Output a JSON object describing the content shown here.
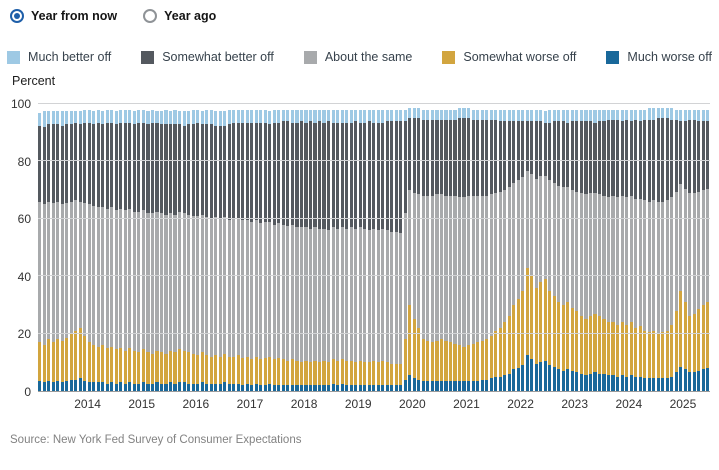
{
  "controls": {
    "radios": [
      {
        "label": "Year from now",
        "selected": true
      },
      {
        "label": "Year ago",
        "selected": false
      }
    ]
  },
  "legend": {
    "items": [
      {
        "label": "Much better off",
        "color": "#9ec9e4"
      },
      {
        "label": "Somewhat better off",
        "color": "#54595f"
      },
      {
        "label": "About the same",
        "color": "#a8aaac"
      },
      {
        "label": "Somewhat worse off",
        "color": "#d2a53f"
      },
      {
        "label": "Much worse off",
        "color": "#19689a"
      }
    ]
  },
  "source": {
    "text": "Source: New York Fed Survey of Consumer Expectations"
  },
  "chart_data": {
    "type": "bar",
    "subtype": "stacked-monthly",
    "title": "",
    "ylabel": "Percent",
    "ylim": [
      0,
      100
    ],
    "yticks": [
      0,
      20,
      40,
      60,
      80,
      100
    ],
    "grid": true,
    "legend_position": "top-center",
    "start_month": "2013-06",
    "end_month": "2025-10",
    "x_year_labels": [
      2014,
      2015,
      2016,
      2017,
      2018,
      2019,
      2020,
      2021,
      2022,
      2023,
      2024,
      2025
    ],
    "series": [
      {
        "name": "Much worse off",
        "color": "#19689a",
        "values": [
          3.5,
          3,
          3.5,
          3,
          3.5,
          3,
          3.5,
          4,
          4,
          4.5,
          3.5,
          3,
          3,
          3,
          3,
          2.5,
          3,
          2.5,
          3,
          2.5,
          3,
          2.5,
          2.5,
          3,
          2.5,
          2.5,
          3,
          2.5,
          2.5,
          3,
          2.5,
          3,
          3,
          2.5,
          2.5,
          2.5,
          3,
          2.5,
          2.5,
          2.5,
          2.5,
          3,
          2.5,
          2.5,
          2.5,
          2,
          2.5,
          2,
          2.5,
          2,
          2,
          2.5,
          2,
          2,
          2,
          2,
          2,
          2,
          2,
          2,
          2,
          2,
          2,
          2,
          2,
          2.5,
          2,
          2.5,
          2,
          2,
          2,
          2,
          2,
          2,
          2,
          2,
          2,
          2,
          2,
          2,
          2,
          4,
          5.5,
          4.5,
          4,
          3.5,
          3.5,
          3.5,
          3.5,
          3.5,
          3.5,
          3.5,
          3.5,
          3.5,
          3.5,
          3.5,
          3.5,
          3.5,
          4,
          4,
          4.5,
          5,
          5,
          5.5,
          6,
          7.5,
          8,
          9,
          12.5,
          11,
          9.5,
          10,
          10.5,
          9,
          8.5,
          7.5,
          7,
          7.5,
          7,
          6.5,
          6,
          5.5,
          6,
          6.5,
          6,
          6,
          5.5,
          5.5,
          5,
          5.5,
          5,
          5.5,
          5,
          5,
          4.5,
          4.5,
          4.5,
          4.5,
          4.5,
          4.5,
          5,
          6.5,
          8.5,
          7.5,
          6.5,
          6.5,
          7,
          7.5,
          8
        ]
      },
      {
        "name": "Somewhat worse off",
        "color": "#d2a53f",
        "values": [
          13.5,
          13,
          14.5,
          14,
          14.5,
          14.5,
          15,
          16,
          17,
          17.5,
          15.5,
          14,
          13,
          12.5,
          13,
          12.5,
          12.5,
          12,
          12,
          11.5,
          12,
          11.5,
          11,
          11.5,
          11,
          10.5,
          11,
          11,
          10.5,
          11,
          11,
          11.5,
          11,
          11,
          10.5,
          10,
          10.5,
          10,
          9.5,
          10,
          9.5,
          10,
          9.5,
          9.5,
          10,
          9.5,
          9.5,
          9,
          9.5,
          9,
          9.5,
          9.5,
          9,
          9.5,
          9,
          8.5,
          9,
          8.5,
          8,
          8.5,
          8,
          8.5,
          8,
          8.5,
          8,
          8.5,
          8.5,
          8.5,
          8.5,
          8.5,
          8,
          8.5,
          8,
          8,
          8.5,
          8,
          8.5,
          8,
          7.5,
          7.5,
          7.5,
          14,
          24.5,
          20.5,
          18,
          14.5,
          14,
          13.5,
          14,
          14.5,
          14,
          13.5,
          13,
          12.5,
          12,
          12.5,
          13,
          13.5,
          13.5,
          14,
          14.5,
          16,
          17,
          18.5,
          20,
          22.5,
          24,
          26,
          30.5,
          29,
          26.5,
          28,
          28.5,
          26,
          24.5,
          23.5,
          23,
          23.5,
          22,
          21.5,
          20,
          19.5,
          20,
          20.5,
          20,
          19,
          18.5,
          18.5,
          18,
          18.5,
          18,
          18.5,
          17,
          17.5,
          16.5,
          16,
          16.5,
          15.5,
          16,
          16.5,
          18,
          21.5,
          26.5,
          23.5,
          19.5,
          20.5,
          21.5,
          22.5,
          23
        ]
      },
      {
        "name": "About the same",
        "color": "#a8aaac",
        "values": [
          49,
          49,
          48,
          48.5,
          48,
          47.5,
          47,
          46,
          45.5,
          44,
          46.5,
          48,
          48.5,
          48.5,
          48,
          48.5,
          48.5,
          48.5,
          48.5,
          49,
          48.5,
          48.5,
          49,
          48.5,
          48.5,
          49,
          48.5,
          48.5,
          48.5,
          48,
          48,
          48,
          48,
          48,
          48,
          48.5,
          48,
          48,
          48,
          48,
          48,
          47.5,
          47.5,
          48,
          47.5,
          48,
          47.5,
          48,
          47.5,
          47.5,
          47.5,
          47,
          47,
          47,
          47,
          47,
          47,
          46.5,
          47,
          46.5,
          46.5,
          46.5,
          46.5,
          46,
          46,
          46,
          46,
          46,
          46,
          46.5,
          46.5,
          46.5,
          46.5,
          46,
          46,
          46,
          46,
          46,
          46,
          46,
          45.5,
          44,
          40,
          44,
          46.5,
          50,
          50.5,
          51,
          51,
          50.5,
          50.5,
          51,
          51.5,
          51.5,
          52,
          52,
          51.5,
          51,
          50.5,
          50,
          49.5,
          48,
          47.5,
          46,
          45,
          42.5,
          41.5,
          39.5,
          33.5,
          35.5,
          38,
          37,
          36,
          38.5,
          39.5,
          40.5,
          41,
          40,
          41,
          41.5,
          43,
          43.5,
          43,
          42,
          42.5,
          43,
          43.5,
          44,
          44.5,
          44,
          44.5,
          44,
          45,
          44.5,
          45.5,
          45.5,
          45.5,
          46,
          45.5,
          45.5,
          44.5,
          41.5,
          37,
          39.5,
          43,
          42,
          41,
          40,
          39.5
        ]
      },
      {
        "name": "Somewhat better off",
        "color": "#54595f",
        "values": [
          26.5,
          27,
          27,
          27.5,
          27,
          27.5,
          27.5,
          27,
          27,
          27,
          28,
          28.5,
          28.5,
          29.5,
          29,
          30,
          29.5,
          30,
          30,
          30.5,
          30,
          30.5,
          31,
          30.5,
          31,
          31.5,
          31,
          31,
          31.5,
          31,
          31.5,
          30.5,
          30.5,
          31.5,
          32,
          32.5,
          31.5,
          32.5,
          33,
          32,
          32.5,
          32,
          33.5,
          33.5,
          33.5,
          34,
          34,
          34.5,
          34,
          35,
          34.5,
          34,
          35.5,
          35,
          36,
          36.5,
          35.5,
          36.5,
          37,
          36.5,
          37.5,
          36.5,
          37.5,
          37,
          38,
          36.5,
          37,
          36.5,
          37,
          36.5,
          37.5,
          36.5,
          37,
          38,
          37,
          37.5,
          37,
          38,
          38.5,
          38.5,
          39,
          32,
          25,
          26,
          26.5,
          26.5,
          26.5,
          26.5,
          26,
          26,
          26.5,
          26.5,
          26.5,
          27.5,
          27.5,
          27,
          26.5,
          26.5,
          26.5,
          26.5,
          26,
          25.5,
          24.5,
          24,
          23,
          21.5,
          20.5,
          19.5,
          17.5,
          18.5,
          20,
          19,
          18.5,
          20,
          21.5,
          22.5,
          23,
          22.5,
          24,
          24.5,
          25,
          25.5,
          25,
          24.5,
          25.5,
          26,
          27,
          26.5,
          27,
          26,
          27,
          26,
          27.5,
          27,
          28,
          28.5,
          28,
          29,
          29,
          28.5,
          27,
          25,
          22,
          23.5,
          25.5,
          25.5,
          24.5,
          24,
          23.5
        ]
      },
      {
        "name": "Much better off",
        "color": "#9ec9e4",
        "values": [
          4.5,
          5.5,
          4.5,
          4.5,
          4.5,
          5,
          4.5,
          4.5,
          4,
          4.5,
          4.5,
          4.5,
          4.5,
          4.5,
          4.5,
          4.5,
          4.5,
          4.5,
          4.5,
          4.5,
          4.5,
          4.5,
          4.5,
          4.5,
          4.5,
          4.5,
          4,
          4.5,
          5,
          4.5,
          5,
          4.5,
          5,
          4.5,
          5,
          4.5,
          4.5,
          5,
          5,
          5,
          5,
          5,
          5,
          4.5,
          4.5,
          4.5,
          4.5,
          4.5,
          4.5,
          4.5,
          4.5,
          4.5,
          4.5,
          4.5,
          4,
          4,
          4.5,
          4.5,
          4,
          4.5,
          4,
          4.5,
          4,
          4.5,
          4,
          4.5,
          4.5,
          4.5,
          4.5,
          4.5,
          4,
          4.5,
          4.5,
          4,
          4.5,
          4.5,
          4.5,
          4,
          4,
          4,
          4,
          4,
          3.5,
          3.5,
          3.5,
          3.5,
          3.5,
          3.5,
          3.5,
          3.5,
          3.5,
          3.5,
          3.5,
          3.5,
          3.5,
          3.5,
          3.5,
          3.5,
          3.5,
          3.5,
          3.5,
          3.5,
          4,
          4,
          4,
          4,
          4,
          4,
          4,
          4,
          4,
          4,
          4,
          4.5,
          4,
          4,
          4,
          4.5,
          4,
          4,
          4,
          4,
          4,
          4.5,
          4,
          4,
          3.5,
          3.5,
          3.5,
          4,
          3.5,
          4,
          3.5,
          4,
          3.5,
          4,
          4,
          3.5,
          3.5,
          3.5,
          4,
          3.5,
          4,
          4,
          3.5,
          3.5,
          4,
          4,
          4
        ]
      }
    ]
  }
}
